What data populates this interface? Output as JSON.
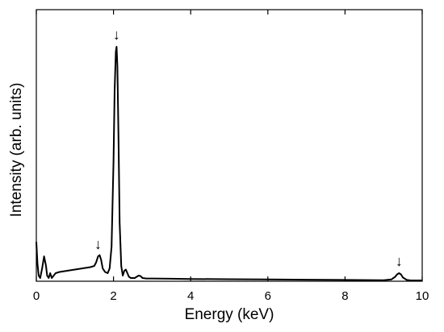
{
  "chart_data": {
    "type": "line",
    "xlabel": "Energy (keV)",
    "ylabel": "Intensity (arb. units)",
    "xlim": [
      0,
      10
    ],
    "ylim": [
      0,
      100
    ],
    "xticks": [
      0,
      2,
      4,
      6,
      8,
      10
    ],
    "xtick_labels": [
      "0",
      "2",
      "4",
      "6",
      "8",
      "10"
    ],
    "yticks_labeled": false,
    "grid": false,
    "legend": "none",
    "line_color": "#000000",
    "series": [
      {
        "x": [
          0.0,
          0.03,
          0.06,
          0.1,
          0.15,
          0.2,
          0.25,
          0.28,
          0.32,
          0.36,
          0.4,
          0.45,
          0.5,
          0.6,
          0.8,
          1.0,
          1.2,
          1.4,
          1.5,
          1.55,
          1.6,
          1.64,
          1.68,
          1.72,
          1.78,
          1.85,
          1.9,
          1.95,
          2.0,
          2.03,
          2.06,
          2.08,
          2.1,
          2.13,
          2.16,
          2.2,
          2.24,
          2.28,
          2.32,
          2.36,
          2.4,
          2.45,
          2.55,
          2.65,
          2.7,
          2.75,
          2.85,
          3.0,
          3.5,
          4.0,
          5.0,
          6.0,
          7.0,
          8.0,
          9.0,
          9.2,
          9.3,
          9.35,
          9.4,
          9.45,
          9.5,
          9.6,
          9.7,
          10.0
        ],
        "y": [
          17,
          8,
          3,
          2,
          6,
          11,
          7,
          3,
          2,
          4,
          2,
          3,
          4,
          4.5,
          5,
          5.5,
          6,
          6.5,
          7,
          8.5,
          11,
          11.5,
          9.5,
          6,
          4.5,
          4,
          6,
          15,
          50,
          80,
          96,
          98,
          90,
          60,
          25,
          7,
          3,
          5,
          5.5,
          4,
          2.5,
          2,
          2,
          3,
          2.8,
          2,
          1.8,
          1.8,
          1.7,
          1.6,
          1.5,
          1.4,
          1.3,
          1.2,
          1.1,
          1.4,
          2.5,
          3.5,
          4,
          3.5,
          2.2,
          1.2,
          1,
          1
        ]
      }
    ],
    "annotations": [
      {
        "text": "↓",
        "x": 1.6,
        "y": 14
      },
      {
        "text": "↓",
        "x": 2.08,
        "y": 101
      },
      {
        "text": "↓",
        "x": 9.4,
        "y": 7
      }
    ]
  }
}
